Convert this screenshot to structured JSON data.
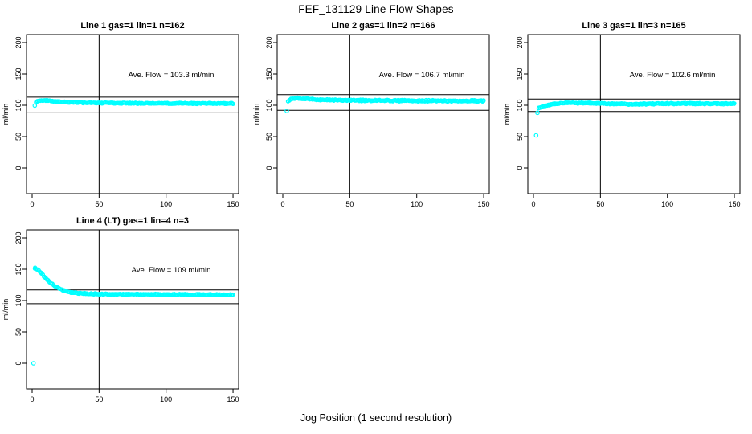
{
  "page_title": "FEF_131129  Line Flow Shapes",
  "x_axis_caption": "Jog Position (1 second resolution)",
  "colors": {
    "point": "#00FFFF",
    "axis": "#000000",
    "background": "#FFFFFF"
  },
  "chart_data": [
    {
      "type": "scatter",
      "title": "Line 1 gas=1 lin=1 n=162",
      "annotation": "Ave. Flow =  103.3  ml/min",
      "ave_flow_ml_min": 103.3,
      "n_points": 162,
      "ylabel": "ml/min",
      "xticks": [
        0,
        50,
        100,
        150
      ],
      "yticks": [
        0,
        50,
        100,
        150,
        200
      ],
      "xlim": [
        0,
        150
      ],
      "ylim": [
        0,
        200
      ],
      "vline_x": 50,
      "hlines": [
        113,
        88
      ],
      "band_halfwidth": 1.3,
      "series": [
        {
          "name": "flow",
          "profile": [
            [
              3,
              104.5
            ],
            [
              5,
              107
            ],
            [
              8,
              107.8
            ],
            [
              14,
              106.8
            ],
            [
              25,
              105
            ],
            [
              45,
              103.8
            ],
            [
              80,
              103.2
            ],
            [
              150,
              102.8
            ]
          ]
        }
      ],
      "outlier_points": [
        [
          2,
          99.5
        ]
      ],
      "grid": {
        "row": 0,
        "col": 0
      }
    },
    {
      "type": "scatter",
      "title": "Line 2 gas=1 lin=2 n=166",
      "annotation": "Ave. Flow =  106.7  ml/min",
      "ave_flow_ml_min": 106.7,
      "n_points": 166,
      "ylabel": "ml/min",
      "xticks": [
        0,
        50,
        100,
        150
      ],
      "yticks": [
        0,
        50,
        100,
        150,
        200
      ],
      "xlim": [
        0,
        150
      ],
      "ylim": [
        0,
        200
      ],
      "vline_x": 50,
      "hlines": [
        117,
        92
      ],
      "band_halfwidth": 1.6,
      "series": [
        {
          "name": "flow",
          "profile": [
            [
              4,
              106
            ],
            [
              6,
              110
            ],
            [
              10,
              111.3
            ],
            [
              16,
              110.3
            ],
            [
              25,
              109
            ],
            [
              45,
              108
            ],
            [
              90,
              107.2
            ],
            [
              150,
              106.8
            ]
          ]
        }
      ],
      "outlier_points": [
        [
          3,
          91
        ]
      ],
      "grid": {
        "row": 0,
        "col": 1
      }
    },
    {
      "type": "scatter",
      "title": "Line 3 gas=1 lin=3 n=165",
      "annotation": "Ave. Flow =  102.6  ml/min",
      "ave_flow_ml_min": 102.6,
      "n_points": 165,
      "ylabel": "ml/min",
      "xticks": [
        0,
        50,
        100,
        150
      ],
      "yticks": [
        0,
        50,
        100,
        150,
        200
      ],
      "xlim": [
        0,
        150
      ],
      "ylim": [
        0,
        200
      ],
      "vline_x": 50,
      "hlines": [
        110,
        90
      ],
      "band_halfwidth": 1.4,
      "series": [
        {
          "name": "flow",
          "profile": [
            [
              4,
              95.5
            ],
            [
              6,
              97.5
            ],
            [
              10,
              100
            ],
            [
              16,
              102.5
            ],
            [
              24,
              103.8
            ],
            [
              45,
              103.2
            ],
            [
              75,
              101.8
            ],
            [
              110,
              102.8
            ],
            [
              150,
              102.5
            ]
          ]
        }
      ],
      "outlier_points": [
        [
          2,
          52
        ],
        [
          3,
          88
        ]
      ],
      "grid": {
        "row": 0,
        "col": 2
      }
    },
    {
      "type": "scatter",
      "title": "Line 4 (LT) gas=1 lin=4 n=3",
      "annotation": "Ave. Flow =  109  ml/min",
      "ave_flow_ml_min": 109,
      "n_points": 3,
      "ylabel": "ml/min",
      "xticks": [
        0,
        50,
        100,
        150
      ],
      "yticks": [
        0,
        50,
        100,
        150,
        200
      ],
      "xlim": [
        0,
        150
      ],
      "ylim": [
        0,
        200
      ],
      "vline_x": 50,
      "hlines": [
        117,
        95
      ],
      "band_halfwidth": 1.3,
      "series": [
        {
          "name": "flow",
          "profile": [
            [
              2,
              151.5
            ],
            [
              3,
              150.5
            ],
            [
              5,
              147.5
            ],
            [
              8,
              141
            ],
            [
              11,
              134
            ],
            [
              14,
              128
            ],
            [
              18,
              122
            ],
            [
              22,
              117.5
            ],
            [
              27,
              114
            ],
            [
              33,
              112
            ],
            [
              42,
              110.8
            ],
            [
              60,
              110.2
            ],
            [
              100,
              109.8
            ],
            [
              150,
              109.3
            ]
          ]
        }
      ],
      "outlier_points": [
        [
          1,
          0
        ]
      ],
      "grid": {
        "row": 1,
        "col": 0
      }
    }
  ]
}
